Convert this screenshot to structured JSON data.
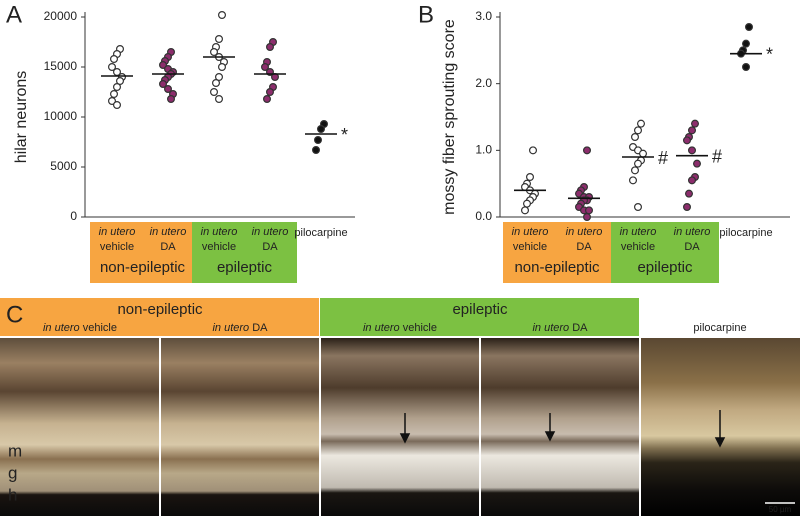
{
  "chart_data": [
    {
      "type": "dot",
      "panel": "A",
      "y_label": "hilar neurons",
      "ylim": [
        0,
        20000
      ],
      "yticks": [
        0,
        5000,
        10000,
        15000,
        20000
      ],
      "groups": [
        {
          "name": "non-epileptic",
          "color": "#f7a541",
          "series": [
            {
              "prefix": "in utero",
              "name": "vehicle",
              "color": "#ffffff",
              "values": [
                16800,
                16300,
                15800,
                15000,
                14500,
                14000,
                13600,
                13000,
                12300,
                11600,
                11200
              ],
              "mean": 14100
            },
            {
              "prefix": "in utero",
              "name": "DA",
              "color": "#8c2d6c",
              "values": [
                16500,
                16000,
                15600,
                15200,
                14800,
                14500,
                14300,
                14000,
                13700,
                13300,
                12800,
                12300,
                11800
              ],
              "mean": 14300
            }
          ]
        },
        {
          "name": "epileptic",
          "color": "#7cc142",
          "series": [
            {
              "prefix": "in utero",
              "name": "vehicle",
              "color": "#ffffff",
              "values": [
                20200,
                17800,
                17000,
                16500,
                16000,
                15500,
                15000,
                14000,
                13400,
                12500,
                11800
              ],
              "mean": 16000
            },
            {
              "prefix": "in utero",
              "name": "DA",
              "color": "#8c2d6c",
              "values": [
                17500,
                17000,
                15500,
                15000,
                14500,
                14000,
                13000,
                12500,
                11800
              ],
              "mean": 14300
            }
          ]
        },
        {
          "series": [
            {
              "name": "pilocarpine",
              "color": "#111111",
              "values": [
                9300,
                8800,
                7700,
                6700
              ],
              "mean": 8300,
              "annotation": "*"
            }
          ]
        }
      ]
    },
    {
      "type": "dot",
      "panel": "B",
      "y_label": "mossy fiber sprouting score",
      "ylim": [
        0,
        3
      ],
      "yticks": [
        {
          "value": 0,
          "label": "0.0"
        },
        {
          "value": 1,
          "label": "1.0"
        },
        {
          "value": 2,
          "label": "2.0"
        },
        {
          "value": 3,
          "label": "3.0"
        }
      ],
      "groups": [
        {
          "name": "non-epileptic",
          "color": "#f7a541",
          "series": [
            {
              "prefix": "in utero",
              "name": "vehicle",
              "color": "#ffffff",
              "values": [
                1.0,
                0.6,
                0.5,
                0.45,
                0.4,
                0.35,
                0.3,
                0.25,
                0.2,
                0.1
              ],
              "mean": 0.4
            },
            {
              "prefix": "in utero",
              "name": "DA",
              "color": "#8c2d6c",
              "values": [
                1.0,
                0.45,
                0.4,
                0.35,
                0.3,
                0.3,
                0.25,
                0.25,
                0.2,
                0.15,
                0.1,
                0.1,
                0.0
              ],
              "mean": 0.28
            }
          ]
        },
        {
          "name": "epileptic",
          "color": "#7cc142",
          "series": [
            {
              "prefix": "in utero",
              "name": "vehicle",
              "color": "#ffffff",
              "values": [
                1.4,
                1.3,
                1.2,
                1.05,
                1.0,
                0.95,
                0.85,
                0.8,
                0.7,
                0.55,
                0.15
              ],
              "mean": 0.9,
              "annotation": "#"
            },
            {
              "prefix": "in utero",
              "name": "DA",
              "color": "#8c2d6c",
              "values": [
                1.4,
                1.3,
                1.2,
                1.15,
                1.0,
                0.8,
                0.6,
                0.55,
                0.35,
                0.15
              ],
              "mean": 0.92,
              "annotation": "#"
            }
          ]
        },
        {
          "series": [
            {
              "name": "pilocarpine",
              "color": "#111111",
              "values": [
                2.85,
                2.6,
                2.5,
                2.45,
                2.25
              ],
              "mean": 2.45,
              "annotation": "*"
            }
          ]
        }
      ]
    }
  ],
  "panel_c": {
    "label": "C",
    "groups": [
      {
        "name": "non-epileptic",
        "color": "#f7a541",
        "panels": [
          {
            "prefix": "in utero",
            "name": "vehicle"
          },
          {
            "prefix": "in utero",
            "name": "DA"
          }
        ]
      },
      {
        "name": "epileptic",
        "color": "#7cc142",
        "panels": [
          {
            "prefix": "in utero",
            "name": "vehicle"
          },
          {
            "prefix": "in utero",
            "name": "DA"
          }
        ]
      },
      {
        "panels": [
          {
            "name": "pilocarpine"
          }
        ]
      }
    ],
    "layers": [
      "m",
      "g",
      "h"
    ],
    "scale_bar": "50 µm"
  }
}
